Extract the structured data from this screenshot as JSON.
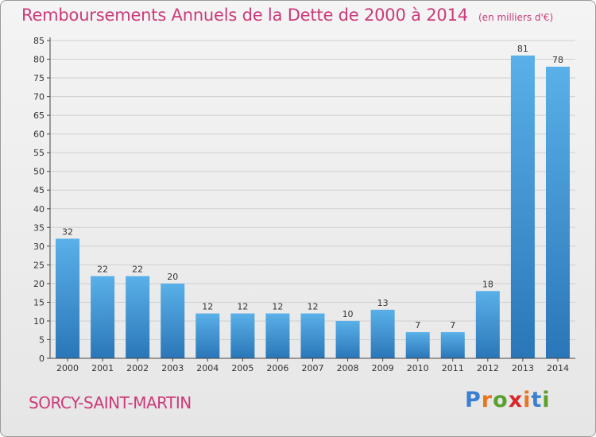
{
  "header": {
    "title": "Remboursements Annuels de la Dette de 2000 à 2014",
    "unit": "(en milliers d'€)"
  },
  "footer": {
    "commune": "SORCY-SAINT-MARTIN",
    "logo_text": "Proxiti",
    "logo_colors": [
      "#3a7fd0",
      "#e8761e",
      "#5aa02c",
      "#d9262c",
      "#e8761e",
      "#3a7fd0",
      "#5aa02c"
    ]
  },
  "colors": {
    "title": "#cc3a7a",
    "bar_light": "#5ab0e8",
    "bar_dark": "#2a76b8",
    "grid": "#cfcfcf",
    "axis": "#444444"
  },
  "chart_data": {
    "type": "bar",
    "categories": [
      "2000",
      "2001",
      "2002",
      "2003",
      "2004",
      "2005",
      "2006",
      "2007",
      "2008",
      "2009",
      "2010",
      "2011",
      "2012",
      "2013",
      "2014"
    ],
    "values": [
      32,
      22,
      22,
      20,
      12,
      12,
      12,
      12,
      10,
      13,
      7,
      7,
      18,
      81,
      78
    ],
    "ylim": [
      0,
      85
    ],
    "yticks": [
      0,
      5,
      10,
      15,
      20,
      25,
      30,
      35,
      40,
      45,
      50,
      55,
      60,
      65,
      70,
      75,
      80,
      85
    ],
    "grid": true,
    "data_labels": true
  }
}
